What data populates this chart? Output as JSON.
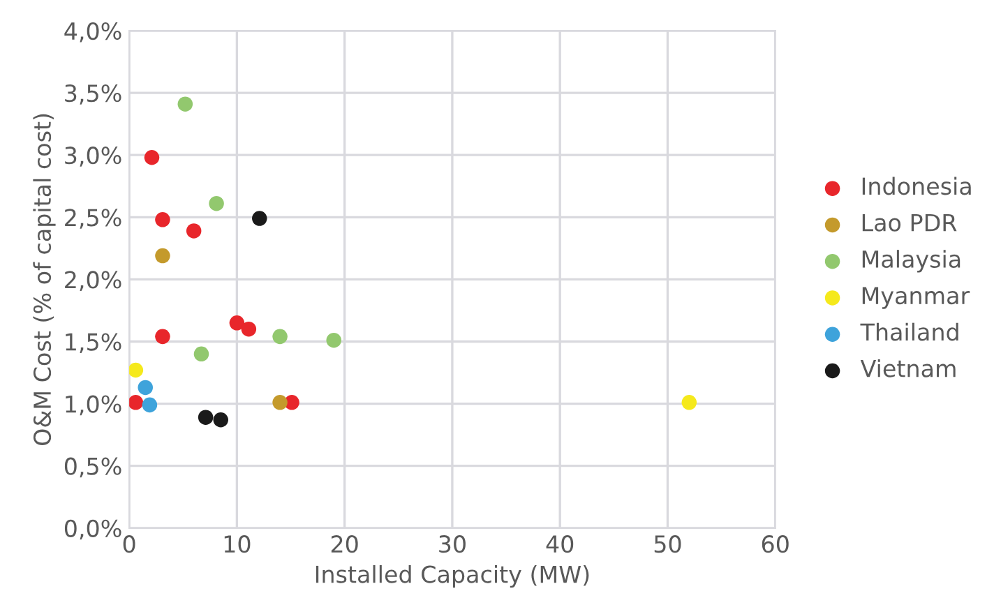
{
  "chart_data": {
    "type": "scatter",
    "xlabel": "Installed Capacity (MW)",
    "ylabel": "O&M Cost (% of capital cost)",
    "xlim": [
      0,
      60
    ],
    "xticks": [
      0,
      10,
      20,
      30,
      40,
      50,
      60
    ],
    "ylim": [
      0,
      4
    ],
    "yticks": [
      {
        "value": 0,
        "label": "0,0%"
      },
      {
        "value": 0.5,
        "label": "0,5%"
      },
      {
        "value": 1,
        "label": "1,0%"
      },
      {
        "value": 1.5,
        "label": "1,5%"
      },
      {
        "value": 2,
        "label": "2,0%"
      },
      {
        "value": 2.5,
        "label": "2,5%"
      },
      {
        "value": 3,
        "label": "3,0%"
      },
      {
        "value": 3.5,
        "label": "3,5%"
      },
      {
        "value": 4,
        "label": "4,0%"
      }
    ],
    "grid": true,
    "legend": "right",
    "marker": "circle",
    "series": [
      {
        "name": "Indonesia",
        "color": "#e8262b",
        "x": [
          2.1,
          3.1,
          6.0,
          3.1,
          10.0,
          11.1,
          0.6,
          15.1
        ],
        "values": [
          2.98,
          2.48,
          2.39,
          1.54,
          1.65,
          1.6,
          1.01,
          1.01
        ]
      },
      {
        "name": "Lao PDR",
        "color": "#c49a2c",
        "x": [
          3.1,
          14.0
        ],
        "values": [
          2.19,
          1.01
        ]
      },
      {
        "name": "Malaysia",
        "color": "#92c86e",
        "x": [
          5.2,
          8.1,
          6.7,
          14.0,
          19.0
        ],
        "values": [
          3.41,
          2.61,
          1.4,
          1.54,
          1.51
        ]
      },
      {
        "name": "Myanmar",
        "color": "#f5e91c",
        "x": [
          0.6,
          52.0
        ],
        "values": [
          1.27,
          1.01
        ]
      },
      {
        "name": "Thailand",
        "color": "#3ea3db",
        "x": [
          1.5,
          1.9
        ],
        "values": [
          1.13,
          0.99
        ]
      },
      {
        "name": "Vietnam",
        "color": "#1a1a1a",
        "x": [
          12.1,
          7.1,
          8.5
        ],
        "values": [
          2.49,
          0.89,
          0.87
        ]
      }
    ]
  }
}
